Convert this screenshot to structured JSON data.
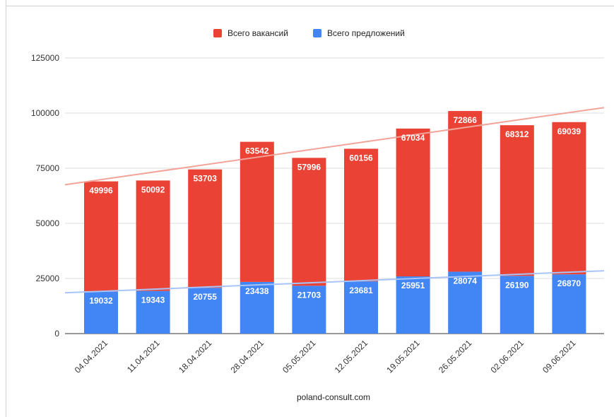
{
  "chart_data": {
    "type": "bar",
    "stacked": true,
    "categories": [
      "04.04.2021",
      "11.04.2021",
      "18.04.2021",
      "28.04.2021",
      "05.05.2021",
      "12.05.2021",
      "19.05.2021",
      "26.05.2021",
      "02.06.2021",
      "09.06.2021"
    ],
    "series": [
      {
        "name": "Всего предложений",
        "color": "#4285f4",
        "values": [
          19032,
          19343,
          20755,
          23438,
          21703,
          23681,
          25951,
          28074,
          26190,
          26870
        ]
      },
      {
        "name": "Всего вакансий",
        "color": "#ea4335",
        "values": [
          49996,
          50092,
          53703,
          63542,
          57996,
          60156,
          67034,
          72866,
          68312,
          69039
        ]
      }
    ],
    "trendlines": [
      {
        "series": "Всего вакансий",
        "color": "#f2a39a",
        "start": 67500,
        "end": 102500
      },
      {
        "series": "Всего предложений",
        "color": "#a8c4f8",
        "start": 18500,
        "end": 28500
      }
    ],
    "legend_order": [
      "Всего вакансий",
      "Всего предложений"
    ],
    "legend_position": "top",
    "xlabel": "poland-consult.com",
    "ylabel": "",
    "ylim": [
      0,
      125000
    ],
    "yticks": [
      "0",
      "25000",
      "50000",
      "75000",
      "100000",
      "125000"
    ],
    "grid": true
  }
}
